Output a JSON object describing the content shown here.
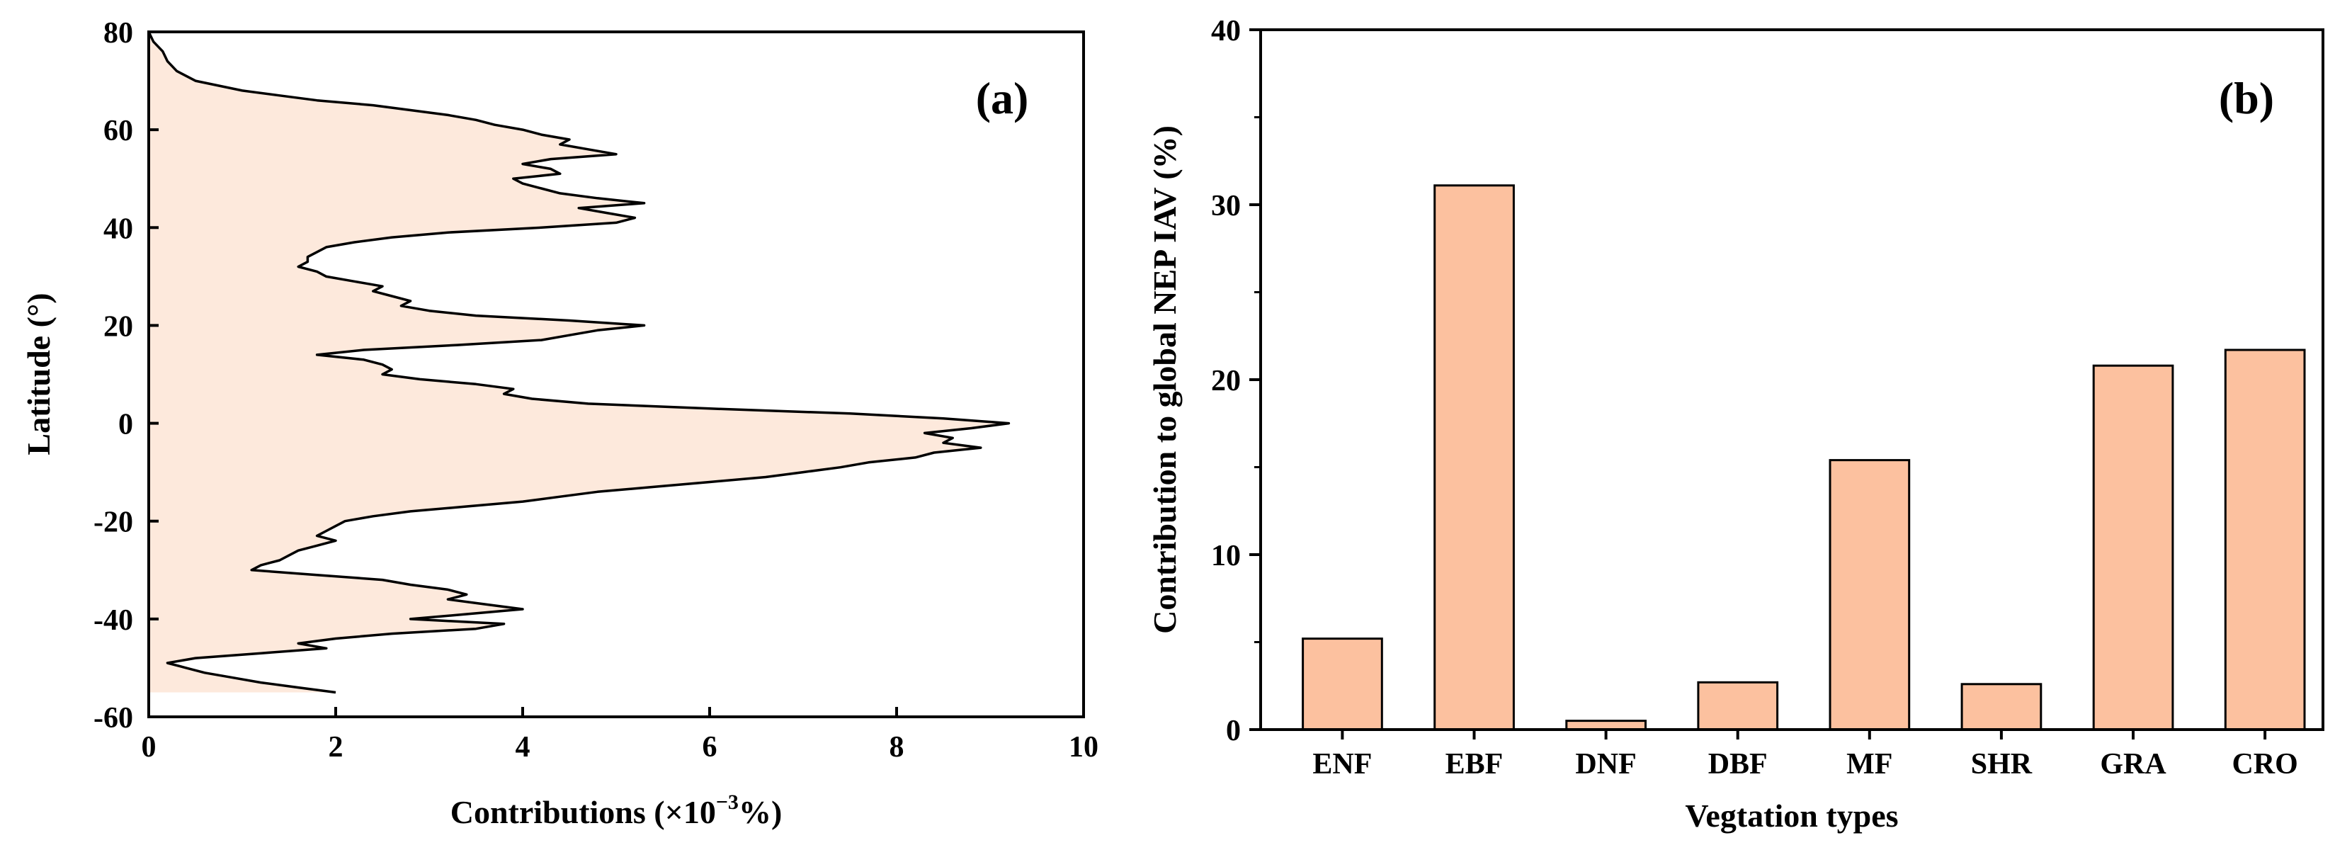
{
  "chart_data": [
    {
      "panel": "(a)",
      "type": "area",
      "orientation": "horizontal",
      "xlabel_main": "Contributions (×10",
      "xlabel_exp": "−3",
      "xlabel_tail": "%)",
      "ylabel": "Latitude (°)",
      "xlim": [
        0,
        10
      ],
      "ylim": [
        -60,
        80
      ],
      "xticks": [
        "0",
        "2",
        "4",
        "6",
        "8",
        "10"
      ],
      "yticks": [
        "-60",
        "-40",
        "-20",
        "0",
        "20",
        "40",
        "60",
        "80"
      ],
      "fill_color": "#fde9dc",
      "line_color": "#000000",
      "profile": {
        "latitude": [
          80,
          78,
          76,
          74,
          72,
          70,
          68,
          67,
          66,
          65,
          64,
          63,
          62,
          61,
          60,
          59,
          58,
          57,
          56,
          55,
          54,
          53,
          52,
          51,
          50,
          49,
          48,
          47,
          46,
          45,
          44,
          43,
          42,
          41,
          40,
          39,
          38,
          37,
          36,
          35,
          34,
          33,
          32,
          31,
          30,
          29,
          28,
          27,
          26,
          25,
          24,
          23,
          22,
          21,
          20,
          19,
          18,
          17,
          16,
          15,
          14,
          13,
          12,
          11,
          10,
          9,
          8,
          7,
          6,
          5,
          4,
          3,
          2,
          1,
          0,
          -1,
          -2,
          -3,
          -4,
          -5,
          -6,
          -7,
          -8,
          -9,
          -10,
          -11,
          -12,
          -13,
          -14,
          -15,
          -16,
          -17,
          -18,
          -19,
          -20,
          -21,
          -22,
          -23,
          -24,
          -25,
          -26,
          -27,
          -28,
          -29,
          -30,
          -31,
          -32,
          -33,
          -34,
          -35,
          -36,
          -37,
          -38,
          -39,
          -40,
          -41,
          -42,
          -43,
          -44,
          -45,
          -46,
          -47,
          -48,
          -49,
          -50,
          -51,
          -52,
          -53,
          -54,
          -55
        ],
        "contribution": [
          0.0,
          0.05,
          0.15,
          0.2,
          0.3,
          0.5,
          1.0,
          1.4,
          1.8,
          2.4,
          2.8,
          3.2,
          3.5,
          3.7,
          4.0,
          4.2,
          4.5,
          4.4,
          4.7,
          5.0,
          4.3,
          4.0,
          4.3,
          4.4,
          3.9,
          4.0,
          4.2,
          4.4,
          4.8,
          5.3,
          4.6,
          4.9,
          5.2,
          5.0,
          4.2,
          3.2,
          2.6,
          2.2,
          1.9,
          1.8,
          1.7,
          1.7,
          1.6,
          1.8,
          1.9,
          2.2,
          2.5,
          2.4,
          2.6,
          2.8,
          2.7,
          3.0,
          3.5,
          4.5,
          5.3,
          4.8,
          4.5,
          4.2,
          3.3,
          2.3,
          1.8,
          2.3,
          2.5,
          2.6,
          2.5,
          2.9,
          3.5,
          3.9,
          3.8,
          4.1,
          4.7,
          6.0,
          7.5,
          8.5,
          9.2,
          8.8,
          8.3,
          8.6,
          8.5,
          8.9,
          8.4,
          8.2,
          7.7,
          7.4,
          7.0,
          6.6,
          6.0,
          5.4,
          4.8,
          4.4,
          4.0,
          3.4,
          2.8,
          2.4,
          2.1,
          2.0,
          1.9,
          1.8,
          2.0,
          1.8,
          1.6,
          1.5,
          1.4,
          1.2,
          1.1,
          1.8,
          2.5,
          2.8,
          3.2,
          3.4,
          3.2,
          3.6,
          4.0,
          3.4,
          2.8,
          3.8,
          3.5,
          2.6,
          2.0,
          1.6,
          1.9,
          1.2,
          0.5,
          0.2,
          0.4,
          0.6,
          0.9,
          1.2,
          1.6,
          2.0
        ]
      }
    },
    {
      "panel": "(b)",
      "type": "bar",
      "categories": [
        "ENF",
        "EBF",
        "DNF",
        "DBF",
        "MF",
        "SHR",
        "GRA",
        "CRO"
      ],
      "values": [
        5.2,
        31.1,
        0.5,
        2.7,
        15.4,
        2.6,
        20.8,
        21.7
      ],
      "xlabel": "Vegtation types",
      "ylabel": "Contribution to global NEP IAV (%)",
      "ylim": [
        0,
        40
      ],
      "yticks": [
        "0",
        "10",
        "20",
        "30",
        "40"
      ],
      "bar_color": "#fcc19f",
      "edge_color": "#000000"
    }
  ]
}
